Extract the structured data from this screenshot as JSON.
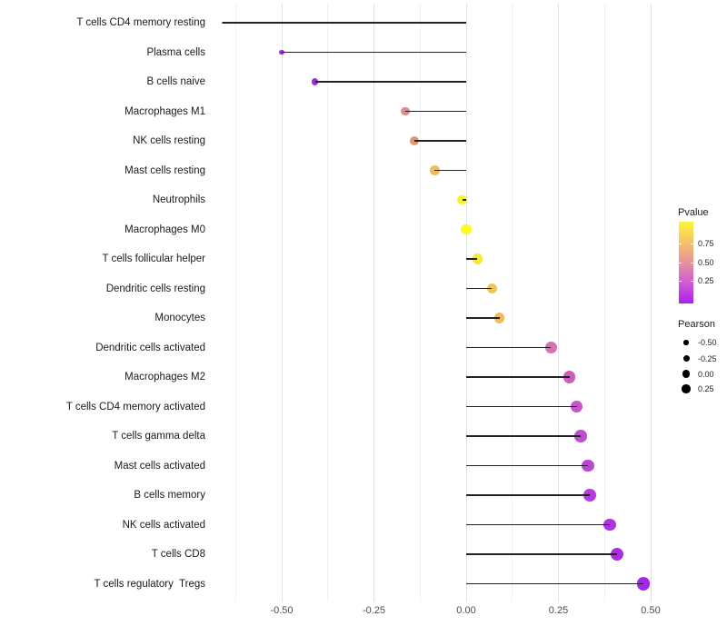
{
  "x_axis": {
    "tick_labels": [
      "-0.50",
      "-0.25",
      "0.00",
      "0.25",
      "0.50"
    ],
    "tick_values": [
      -0.5,
      -0.25,
      0,
      0.25,
      0.5
    ]
  },
  "legend_pvalue": {
    "title": "Pvalue",
    "tick_labels": [
      "0.75",
      "0.50",
      "0.25"
    ],
    "gradient_stops": [
      "#FCF43B",
      "#F4C368",
      "#E6939B",
      "#D05CD2",
      "#A81FF2"
    ]
  },
  "legend_pearson": {
    "title": "Pearson",
    "entry_labels": [
      "-0.50",
      "-0.25",
      "0.00",
      "0.25"
    ]
  },
  "chart_data": {
    "type": "scatter",
    "variant": "horizontal lollipop (dot + segment from 0)",
    "xlabel": "",
    "ylabel": "",
    "xlim": [
      -0.685,
      0.527
    ],
    "x_ticks": [
      -0.5,
      -0.25,
      0,
      0.25,
      0.5
    ],
    "grid": "vertical only, light gray, minor lines at 0.125 steps",
    "legend_position": "right",
    "color_encoding": {
      "variable": "Pvalue",
      "low": "#A81FF2",
      "high": "#FCF43B"
    },
    "size_encoding": {
      "variable": "Pearson",
      "legend_values": [
        -0.5,
        -0.25,
        0,
        0.25
      ]
    },
    "points": [
      {
        "label": "T cells CD4 memory resting",
        "pearson": -0.66,
        "pvalue_est": 0.12,
        "color": "#9B30D2"
      },
      {
        "label": "Plasma cells",
        "pearson": -0.5,
        "pvalue_est": 0.08,
        "color": "#A428DE"
      },
      {
        "label": "B cells naive",
        "pearson": -0.41,
        "pvalue_est": 0.1,
        "color": "#A02DD8"
      },
      {
        "label": "Macrophages M1",
        "pearson": -0.165,
        "pvalue_est": 0.52,
        "color": "#DE8B8A"
      },
      {
        "label": "NK cells resting",
        "pearson": -0.14,
        "pvalue_est": 0.57,
        "color": "#E19575"
      },
      {
        "label": "Mast cells resting",
        "pearson": -0.085,
        "pvalue_est": 0.7,
        "color": "#EDBD62"
      },
      {
        "label": "Neutrophils",
        "pearson": -0.01,
        "pvalue_est": 0.93,
        "color": "#F9F32A"
      },
      {
        "label": "Macrophages M0",
        "pearson": 0.0,
        "pvalue_est": 0.97,
        "color": "#FDF921"
      },
      {
        "label": "T cells follicular helper",
        "pearson": 0.03,
        "pvalue_est": 0.88,
        "color": "#F7E93B"
      },
      {
        "label": "Dendritic cells resting",
        "pearson": 0.07,
        "pvalue_est": 0.71,
        "color": "#F0C35E"
      },
      {
        "label": "Monocytes",
        "pearson": 0.09,
        "pvalue_est": 0.69,
        "color": "#EFBA63"
      },
      {
        "label": "Dendritic cells activated",
        "pearson": 0.23,
        "pvalue_est": 0.36,
        "color": "#D374AC"
      },
      {
        "label": "Macrophages M2",
        "pearson": 0.28,
        "pvalue_est": 0.28,
        "color": "#CB5EBF"
      },
      {
        "label": "T cells CD4 memory activated",
        "pearson": 0.3,
        "pvalue_est": 0.25,
        "color": "#C456C8"
      },
      {
        "label": "T cells gamma delta",
        "pearson": 0.31,
        "pvalue_est": 0.22,
        "color": "#C04FD0"
      },
      {
        "label": "Mast cells activated",
        "pearson": 0.33,
        "pvalue_est": 0.2,
        "color": "#BB46D6"
      },
      {
        "label": "B cells memory",
        "pearson": 0.335,
        "pvalue_est": 0.16,
        "color": "#B43CDC"
      },
      {
        "label": "NK cells activated",
        "pearson": 0.39,
        "pvalue_est": 0.12,
        "color": "#AE34E0"
      },
      {
        "label": "T cells CD8",
        "pearson": 0.41,
        "pvalue_est": 0.1,
        "color": "#AA2DE4"
      },
      {
        "label": "T cells regulatory  Tregs",
        "pearson": 0.48,
        "pvalue_est": 0.06,
        "color": "#A625EA"
      }
    ]
  }
}
